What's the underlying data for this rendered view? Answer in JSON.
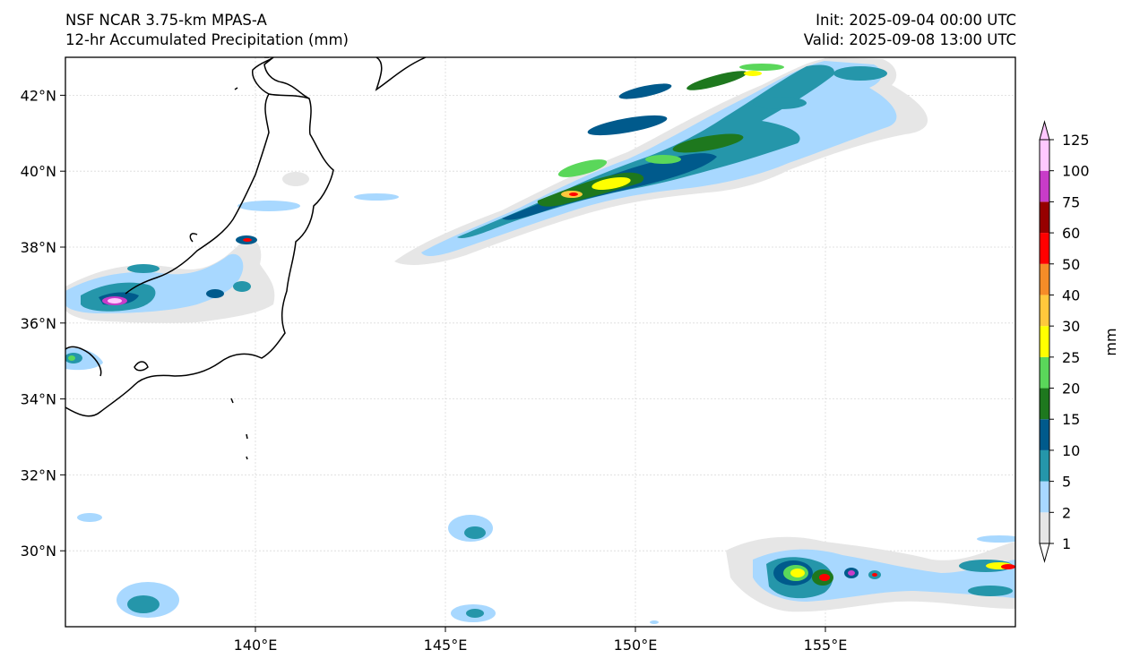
{
  "header": {
    "title_line1": "NSF NCAR 3.75-km MPAS-A",
    "title_line2": "12-hr Accumulated Precipitation (mm)",
    "init": "Init: 2025-09-04 00:00 UTC",
    "valid": "Valid: 2025-09-08 13:00 UTC"
  },
  "map": {
    "lon_range": [
      135,
      160
    ],
    "lat_range": [
      28,
      43
    ],
    "lat_ticks": [
      {
        "value": 42,
        "label": "42°N"
      },
      {
        "value": 40,
        "label": "40°N"
      },
      {
        "value": 38,
        "label": "38°N"
      },
      {
        "value": 36,
        "label": "36°N"
      },
      {
        "value": 34,
        "label": "34°N"
      },
      {
        "value": 32,
        "label": "32°N"
      },
      {
        "value": 30,
        "label": "30°N"
      }
    ],
    "lon_ticks": [
      {
        "value": 140,
        "label": "140°E"
      },
      {
        "value": 145,
        "label": "145°E"
      },
      {
        "value": 150,
        "label": "150°E"
      },
      {
        "value": 155,
        "label": "155°E"
      }
    ],
    "gridlines": true
  },
  "colorbar": {
    "label": "mm",
    "levels": [
      "1",
      "2",
      "5",
      "10",
      "15",
      "20",
      "25",
      "30",
      "40",
      "50",
      "60",
      "75",
      "100",
      "125"
    ],
    "colors": [
      "#e6e6e6",
      "#a8d8ff",
      "#2596aa",
      "#005a8c",
      "#1e781e",
      "#5ad75a",
      "#ffff00",
      "#ffc83c",
      "#f58c28",
      "#ff0000",
      "#960000",
      "#c83cc8",
      "#ffc8ff"
    ]
  },
  "precip_areas": [
    {
      "name": "north-pacific-band",
      "color": "#a8d8ff"
    },
    {
      "name": "central-japan",
      "color": "#2596aa"
    },
    {
      "name": "southeast-cluster",
      "color": "#005a8c"
    }
  ]
}
